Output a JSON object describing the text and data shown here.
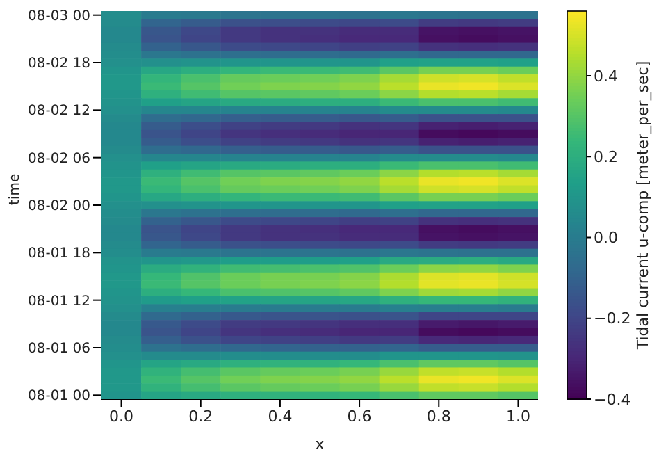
{
  "chart_data": {
    "type": "heatmap",
    "xlabel": "x",
    "ylabel": "time",
    "clabel": "Tidal current u-comp [meter_per_sec]",
    "categories": [
      "0.0",
      null,
      "0.2",
      null,
      "0.4",
      null,
      "0.6",
      null,
      "0.8",
      null,
      "1.0"
    ],
    "y_categories": [
      "08-03 00",
      null,
      null,
      null,
      null,
      null,
      "08-02 18",
      null,
      null,
      null,
      null,
      null,
      "08-02 12",
      null,
      null,
      null,
      null,
      null,
      "08-02 06",
      null,
      null,
      null,
      null,
      null,
      "08-02 00",
      null,
      null,
      null,
      null,
      null,
      "08-01 18",
      null,
      null,
      null,
      null,
      null,
      "08-01 12",
      null,
      null,
      null,
      null,
      null,
      "08-01 06",
      null,
      null,
      null,
      null,
      null,
      "08-01 00"
    ],
    "cells": [
      [
        0.07,
        0,
        -0.01,
        -0.03,
        -0.03,
        -0.03,
        -0.04,
        -0.02,
        -0.03,
        -0.04,
        -0.04
      ],
      [
        0.06,
        -0.09,
        -0.12,
        -0.16,
        -0.17,
        -0.18,
        -0.19,
        -0.18,
        -0.23,
        -0.24,
        -0.23
      ],
      [
        0.05,
        -0.14,
        -0.19,
        -0.24,
        -0.26,
        -0.26,
        -0.28,
        -0.28,
        -0.35,
        -0.36,
        -0.35
      ],
      [
        0.05,
        -0.15,
        -0.2,
        -0.24,
        -0.26,
        -0.27,
        -0.29,
        -0.29,
        -0.36,
        -0.37,
        -0.36
      ],
      [
        0.06,
        -0.1,
        -0.14,
        -0.18,
        -0.19,
        -0.2,
        -0.22,
        -0.21,
        -0.26,
        -0.27,
        -0.26
      ],
      [
        0.07,
        -0.02,
        -0.04,
        -0.05,
        -0.06,
        -0.06,
        -0.07,
        -0.05,
        -0.08,
        -0.08,
        -0.08
      ],
      [
        0.08,
        0.08,
        0.09,
        0.1,
        0.1,
        0.1,
        0.1,
        0.14,
        0.15,
        0.15,
        0.14
      ],
      [
        0.1,
        0.17,
        0.2,
        0.23,
        0.25,
        0.25,
        0.26,
        0.31,
        0.36,
        0.36,
        0.34
      ],
      [
        0.11,
        0.23,
        0.28,
        0.33,
        0.34,
        0.35,
        0.37,
        0.43,
        0.49,
        0.5,
        0.47
      ],
      [
        0.11,
        0.25,
        0.3,
        0.35,
        0.37,
        0.38,
        0.4,
        0.46,
        0.53,
        0.54,
        0.51
      ],
      [
        0.1,
        0.21,
        0.26,
        0.3,
        0.31,
        0.32,
        0.34,
        0.39,
        0.45,
        0.46,
        0.43
      ],
      [
        0.09,
        0.14,
        0.16,
        0.18,
        0.19,
        0.2,
        0.2,
        0.25,
        0.28,
        0.28,
        0.26
      ],
      [
        0.08,
        0.04,
        0.04,
        0.03,
        0.03,
        0.03,
        0.03,
        0.06,
        0.06,
        0.06,
        0.05
      ],
      [
        0.06,
        -0.06,
        -0.08,
        -0.11,
        -0.12,
        -0.12,
        -0.14,
        -0.12,
        -0.16,
        -0.16,
        -0.16
      ],
      [
        0.05,
        -0.12,
        -0.17,
        -0.21,
        -0.23,
        -0.24,
        -0.26,
        -0.25,
        -0.31,
        -0.32,
        -0.31
      ],
      [
        0.05,
        -0.15,
        -0.2,
        -0.25,
        -0.27,
        -0.28,
        -0.3,
        -0.3,
        -0.37,
        -0.38,
        -0.37
      ],
      [
        0.05,
        -0.12,
        -0.17,
        -0.21,
        -0.23,
        -0.24,
        -0.26,
        -0.25,
        -0.31,
        -0.32,
        -0.31
      ],
      [
        0.06,
        -0.06,
        -0.08,
        -0.11,
        -0.12,
        -0.12,
        -0.14,
        -0.12,
        -0.16,
        -0.16,
        -0.16
      ],
      [
        0.08,
        0.04,
        0.04,
        0.03,
        0.03,
        0.03,
        0.03,
        0.06,
        0.06,
        0.06,
        0.05
      ],
      [
        0.09,
        0.14,
        0.16,
        0.18,
        0.19,
        0.2,
        0.2,
        0.25,
        0.28,
        0.28,
        0.26
      ],
      [
        0.1,
        0.21,
        0.26,
        0.3,
        0.31,
        0.32,
        0.34,
        0.39,
        0.45,
        0.46,
        0.43
      ],
      [
        0.11,
        0.25,
        0.3,
        0.35,
        0.37,
        0.38,
        0.4,
        0.46,
        0.53,
        0.54,
        0.51
      ],
      [
        0.11,
        0.23,
        0.28,
        0.33,
        0.34,
        0.35,
        0.37,
        0.43,
        0.49,
        0.5,
        0.47
      ],
      [
        0.1,
        0.17,
        0.2,
        0.23,
        0.25,
        0.25,
        0.26,
        0.31,
        0.36,
        0.36,
        0.34
      ],
      [
        0.08,
        0.08,
        0.09,
        0.1,
        0.1,
        0.1,
        0.1,
        0.14,
        0.15,
        0.15,
        0.14
      ],
      [
        0.07,
        -0.02,
        -0.04,
        -0.05,
        -0.06,
        -0.06,
        -0.07,
        -0.05,
        -0.08,
        -0.08,
        -0.08
      ],
      [
        0.06,
        -0.1,
        -0.14,
        -0.18,
        -0.19,
        -0.2,
        -0.22,
        -0.21,
        -0.26,
        -0.27,
        -0.26
      ],
      [
        0.05,
        -0.15,
        -0.2,
        -0.24,
        -0.26,
        -0.27,
        -0.29,
        -0.29,
        -0.36,
        -0.37,
        -0.36
      ],
      [
        0.05,
        -0.14,
        -0.19,
        -0.24,
        -0.26,
        -0.26,
        -0.28,
        -0.28,
        -0.35,
        -0.36,
        -0.35
      ],
      [
        0.06,
        -0.09,
        -0.12,
        -0.16,
        -0.17,
        -0.18,
        -0.19,
        -0.18,
        -0.23,
        -0.24,
        -0.23
      ],
      [
        0.07,
        0,
        -0.01,
        -0.03,
        -0.03,
        -0.03,
        -0.04,
        -0.02,
        -0.03,
        -0.04,
        -0.04
      ],
      [
        0.09,
        0.1,
        0.11,
        0.13,
        0.13,
        0.13,
        0.14,
        0.18,
        0.19,
        0.2,
        0.18
      ],
      [
        0.1,
        0.19,
        0.22,
        0.26,
        0.27,
        0.28,
        0.29,
        0.34,
        0.39,
        0.4,
        0.37
      ],
      [
        0.11,
        0.24,
        0.29,
        0.34,
        0.36,
        0.36,
        0.38,
        0.44,
        0.51,
        0.52,
        0.49
      ],
      [
        0.11,
        0.25,
        0.3,
        0.34,
        0.36,
        0.37,
        0.39,
        0.45,
        0.52,
        0.53,
        0.5
      ],
      [
        0.1,
        0.2,
        0.24,
        0.28,
        0.29,
        0.3,
        0.32,
        0.37,
        0.42,
        0.43,
        0.4
      ],
      [
        0.09,
        0.12,
        0.14,
        0.15,
        0.16,
        0.16,
        0.17,
        0.21,
        0.24,
        0.24,
        0.22
      ],
      [
        0.08,
        0.02,
        0.01,
        0,
        0,
        0,
        0,
        0.02,
        0.01,
        0.01,
        0
      ],
      [
        0.06,
        -0.07,
        -0.1,
        -0.13,
        -0.15,
        -0.15,
        -0.16,
        -0.15,
        -0.2,
        -0.2,
        -0.2
      ],
      [
        0.05,
        -0.13,
        -0.18,
        -0.23,
        -0.24,
        -0.25,
        -0.27,
        -0.27,
        -0.33,
        -0.34,
        -0.33
      ],
      [
        0.05,
        -0.15,
        -0.2,
        -0.25,
        -0.27,
        -0.28,
        -0.3,
        -0.3,
        -0.37,
        -0.38,
        -0.37
      ],
      [
        0.06,
        -0.11,
        -0.16,
        -0.2,
        -0.21,
        -0.22,
        -0.24,
        -0.23,
        -0.29,
        -0.3,
        -0.29
      ],
      [
        0.07,
        -0.04,
        -0.06,
        -0.08,
        -0.09,
        -0.1,
        -0.1,
        -0.09,
        -0.12,
        -0.12,
        -0.12
      ],
      [
        0.08,
        0.06,
        0.06,
        0.07,
        0.07,
        0.07,
        0.07,
        0.1,
        0.1,
        0.1,
        0.09
      ],
      [
        0.1,
        0.16,
        0.18,
        0.21,
        0.22,
        0.22,
        0.24,
        0.28,
        0.32,
        0.32,
        0.3
      ],
      [
        0.11,
        0.22,
        0.27,
        0.31,
        0.33,
        0.34,
        0.36,
        0.41,
        0.47,
        0.48,
        0.45
      ],
      [
        0.11,
        0.25,
        0.3,
        0.35,
        0.37,
        0.38,
        0.4,
        0.46,
        0.53,
        0.54,
        0.51
      ],
      [
        0.11,
        0.22,
        0.27,
        0.31,
        0.33,
        0.34,
        0.36,
        0.41,
        0.47,
        0.48,
        0.45
      ],
      [
        0.1,
        0.16,
        0.18,
        0.21,
        0.22,
        0.22,
        0.24,
        0.28,
        0.32,
        0.32,
        0.3
      ]
    ],
    "clim": [
      -0.4,
      0.56
    ],
    "cticks": [
      {
        "value": -0.4,
        "label": "−0.4"
      },
      {
        "value": -0.2,
        "label": "−0.2"
      },
      {
        "value": 0,
        "label": "0.0"
      },
      {
        "value": 0.2,
        "label": "0.2"
      },
      {
        "value": 0.4,
        "label": "0.4"
      }
    ]
  }
}
